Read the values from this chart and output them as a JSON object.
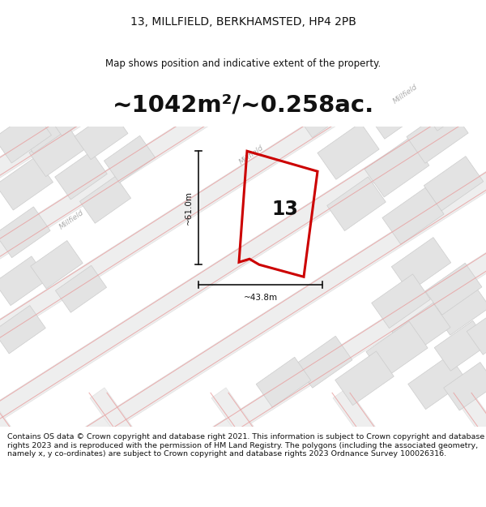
{
  "title": "13, MILLFIELD, BERKHAMSTED, HP4 2PB",
  "subtitle": "Map shows position and indicative extent of the property.",
  "area_text": "~1042m²/~0.258ac.",
  "label_13": "13",
  "dim_height": "~61.0m",
  "dim_width": "~43.8m",
  "footer": "Contains OS data © Crown copyright and database right 2021. This information is subject to Crown copyright and database rights 2023 and is reproduced with the permission of HM Land Registry. The polygons (including the associated geometry, namely x, y co-ordinates) are subject to Crown copyright and database rights 2023 Ordnance Survey 100026316.",
  "bg_color": "#ffffff",
  "map_bg": "#f7f7f7",
  "parcel_color": "#e3e3e3",
  "parcel_edge": "#cccccc",
  "road_color": "#eeeeee",
  "road_edge": "#dddddd",
  "street_line_color": "#e8a0a0",
  "property_color": "#cc0000",
  "dim_color": "#111111",
  "title_color": "#111111",
  "footer_color": "#111111",
  "area_text_color": "#111111",
  "road_label_color": "#aaaaaa"
}
